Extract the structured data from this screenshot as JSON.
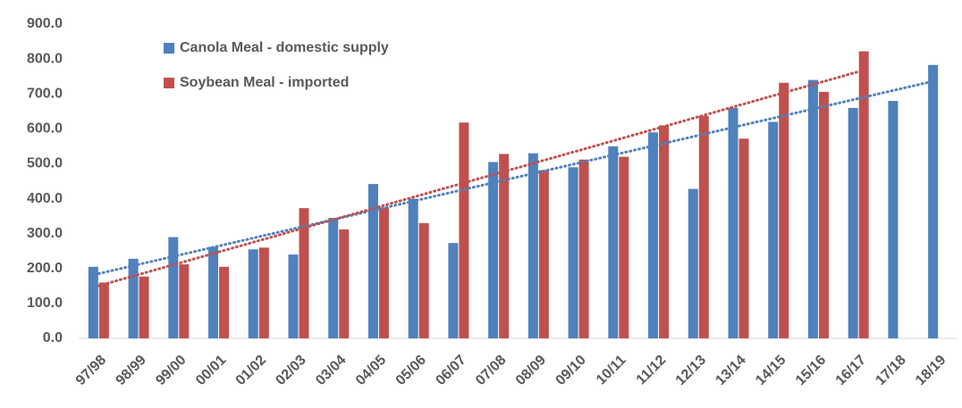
{
  "chart_data": {
    "type": "bar",
    "categories": [
      "97/98",
      "98/99",
      "99/00",
      "00/01",
      "01/02",
      "02/03",
      "03/04",
      "04/05",
      "05/06",
      "06/07",
      "07/08",
      "08/09",
      "09/10",
      "10/11",
      "11/12",
      "12/13",
      "13/14",
      "14/15",
      "15/16",
      "16/17",
      "17/18",
      "18/19"
    ],
    "series": [
      {
        "name": "Canola Meal - domestic supply",
        "color": "#4f81bd",
        "values": [
          205,
          228,
          290,
          262,
          255,
          240,
          345,
          442,
          400,
          273,
          505,
          530,
          490,
          550,
          590,
          428,
          660,
          620,
          740,
          660,
          680,
          783
        ]
      },
      {
        "name": "Soybean Meal - imported",
        "color": "#c0504d",
        "values": [
          160,
          177,
          212,
          205,
          260,
          373,
          312,
          375,
          330,
          618,
          528,
          482,
          512,
          520,
          610,
          637,
          572,
          732,
          706,
          822,
          null,
          null
        ]
      }
    ],
    "ylim": [
      0,
      900
    ],
    "yticks": [
      {
        "value": 0,
        "label": "0.0"
      },
      {
        "value": 100,
        "label": "100.0"
      },
      {
        "value": 200,
        "label": "200.0"
      },
      {
        "value": 300,
        "label": "300.0"
      },
      {
        "value": 400,
        "label": "400.0"
      },
      {
        "value": 500,
        "label": "500.0"
      },
      {
        "value": 600,
        "label": "600.0"
      },
      {
        "value": 700,
        "label": "700.0"
      },
      {
        "value": 800,
        "label": "800.0"
      },
      {
        "value": 900,
        "label": "900.0"
      }
    ],
    "trendline": true,
    "legend": "top-left"
  }
}
